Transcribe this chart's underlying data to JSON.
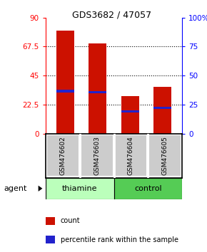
{
  "title": "GDS3682 / 47057",
  "samples": [
    "GSM476602",
    "GSM476603",
    "GSM476604",
    "GSM476605"
  ],
  "group_labels": [
    "thiamine",
    "control"
  ],
  "count_values": [
    80,
    70,
    29,
    36
  ],
  "percentile_values": [
    33,
    32,
    17,
    20
  ],
  "left_ylim": [
    0,
    90
  ],
  "right_ylim": [
    0,
    100
  ],
  "left_yticks": [
    0,
    22.5,
    45,
    67.5,
    90
  ],
  "right_yticks": [
    0,
    25,
    50,
    75,
    100
  ],
  "left_yticklabels": [
    "0",
    "22.5",
    "45",
    "67.5",
    "90"
  ],
  "right_yticklabels": [
    "0",
    "25",
    "50",
    "75",
    "100%"
  ],
  "bar_color": "#cc1100",
  "percentile_color": "#2222cc",
  "bar_width": 0.55,
  "agent_label": "agent",
  "sample_bg_color": "#cccccc",
  "thiamine_color": "#bbffbb",
  "control_color": "#55cc55",
  "legend_count_label": "count",
  "legend_pct_label": "percentile rank within the sample"
}
